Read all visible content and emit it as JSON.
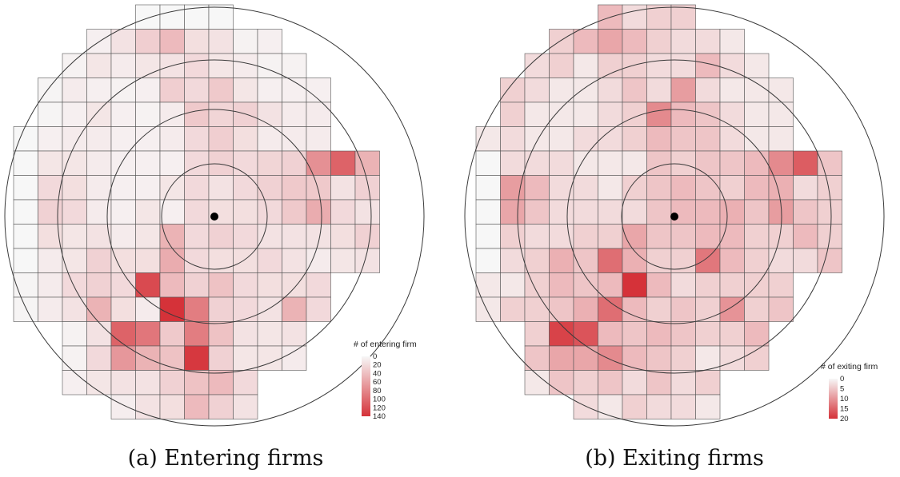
{
  "figure": {
    "panels": [
      {
        "caption": "(a) Entering firms"
      },
      {
        "caption": "(b) Exiting firms"
      }
    ]
  },
  "chart_data": [
    {
      "type": "heatmap",
      "title": "",
      "legend_title": "# of entering firm",
      "legend_ticks": [
        0,
        20,
        40,
        60,
        80,
        100,
        120,
        140
      ],
      "value_range": [
        0,
        140
      ],
      "colors": {
        "low": "#f7f7f7",
        "high": "#d53239",
        "grid_line": "#555555",
        "circle": "#3a3a3a",
        "center": "#000000"
      },
      "rings": 4,
      "grid_rows_from_top": [
        [
          0,
          null,
          null,
          null,
          null,
          [
            5,
            2,
            22,
            10,
            2,
            3
          ]
        ],
        [
          0,
          3,
          10,
          22,
          35,
          12,
          10,
          2,
          3,
          5,
          3
        ],
        [
          0,
          2,
          8,
          5,
          8,
          10,
          15,
          8,
          5,
          2,
          2,
          5,
          3
        ],
        [
          0,
          1,
          5,
          3,
          2,
          3,
          22,
          15,
          25,
          8,
          3,
          3,
          3,
          5
        ],
        [
          0,
          1,
          3,
          8,
          3,
          2,
          5,
          25,
          18,
          20,
          10,
          5,
          5,
          8
        ],
        [
          0,
          0,
          3,
          5,
          5,
          3,
          3,
          5,
          15,
          22,
          12,
          5,
          5,
          5,
          3,
          2
        ],
        [
          0,
          0,
          8,
          8,
          5,
          3,
          3,
          3,
          15,
          20,
          15,
          18,
          20,
          65,
          100,
          40,
          30
        ],
        [
          0,
          0,
          15,
          12,
          5,
          3,
          3,
          8,
          15,
          10,
          15,
          20,
          25,
          25,
          10,
          20,
          5
        ],
        [
          0,
          0,
          20,
          15,
          5,
          3,
          8,
          3,
          15,
          12,
          12,
          15,
          25,
          45,
          15,
          10,
          8
        ],
        [
          0,
          0,
          12,
          8,
          10,
          5,
          8,
          40,
          15,
          20,
          15,
          10,
          10,
          10,
          12,
          20,
          15
        ],
        [
          0,
          0,
          5,
          8,
          20,
          12,
          12,
          45,
          15,
          12,
          12,
          15,
          10,
          5,
          8,
          10,
          12
        ],
        [
          0,
          1,
          5,
          15,
          20,
          15,
          120,
          35,
          20,
          30,
          15,
          12,
          12,
          15,
          20
        ],
        [
          0,
          1,
          5,
          10,
          40,
          12,
          5,
          140,
          80,
          20,
          15,
          10,
          40,
          15,
          25
        ],
        [
          0,
          2,
          10,
          100,
          85,
          25,
          80,
          30,
          10,
          8,
          10,
          8,
          10
        ],
        [
          0,
          2,
          15,
          60,
          40,
          30,
          135,
          20,
          8,
          8,
          5,
          5,
          3
        ],
        [
          0,
          3,
          8,
          10,
          10,
          20,
          30,
          35,
          15,
          5,
          5
        ],
        [
          0,
          4,
          10,
          12,
          35,
          20,
          10,
          8
        ]
      ]
    },
    {
      "type": "heatmap",
      "title": "",
      "legend_title": "# of exiting firm",
      "legend_ticks": [
        0,
        5,
        10,
        15,
        20
      ],
      "value_range": [
        0,
        20
      ],
      "colors": {
        "low": "#f7f7f7",
        "high": "#d53239",
        "grid_line": "#555555",
        "circle": "#3a3a3a",
        "center": "#000000"
      },
      "rings": 4,
      "grid_rows_from_top": [
        [
          0,
          5,
          2,
          3,
          3,
          2,
          1
        ],
        [
          0,
          3,
          5,
          7,
          5,
          3,
          2,
          2,
          1,
          2,
          1
        ],
        [
          0,
          2,
          3,
          1,
          3,
          3,
          2,
          2,
          5,
          2,
          1,
          2,
          3
        ],
        [
          0,
          3,
          2,
          1,
          1,
          2,
          4,
          2,
          8,
          2,
          1,
          1,
          1,
          2
        ],
        [
          0,
          3,
          1,
          1,
          1,
          2,
          3,
          10,
          5,
          4,
          2,
          1,
          1,
          2
        ],
        [
          0,
          1,
          2,
          1,
          1,
          2,
          2,
          3,
          5,
          4,
          4,
          2,
          1,
          1,
          2,
          1
        ],
        [
          0,
          0,
          2,
          2,
          2,
          1,
          1,
          1,
          4,
          3,
          4,
          4,
          5,
          10,
          15,
          4,
          2
        ],
        [
          0,
          0,
          8,
          5,
          2,
          2,
          1,
          3,
          4,
          5,
          4,
          3,
          5,
          6,
          2,
          3,
          2
        ],
        [
          0,
          0,
          7,
          4,
          2,
          2,
          2,
          2,
          4,
          5,
          5,
          6,
          4,
          8,
          4,
          3,
          2
        ],
        [
          0,
          0,
          3,
          2,
          2,
          3,
          3,
          7,
          4,
          4,
          5,
          5,
          3,
          3,
          5,
          3,
          3
        ],
        [
          0,
          0,
          2,
          3,
          6,
          4,
          13,
          6,
          3,
          3,
          12,
          5,
          3,
          2,
          2,
          4,
          3
        ],
        [
          0,
          1,
          1,
          3,
          5,
          4,
          5,
          20,
          5,
          2,
          3,
          3,
          3,
          3,
          4
        ],
        [
          0,
          1,
          3,
          3,
          4,
          6,
          13,
          5,
          3,
          4,
          3,
          9,
          3,
          4,
          3
        ],
        [
          0,
          3,
          18,
          16,
          5,
          4,
          5,
          4,
          3,
          3,
          5,
          3,
          3
        ],
        [
          0,
          4,
          7,
          7,
          10,
          5,
          4,
          3,
          1,
          2,
          3,
          3,
          2
        ],
        [
          0,
          1,
          4,
          3,
          4,
          2,
          4,
          2,
          3,
          1,
          2
        ],
        [
          0,
          2,
          1,
          3,
          2,
          2,
          1,
          2
        ]
      ]
    }
  ]
}
